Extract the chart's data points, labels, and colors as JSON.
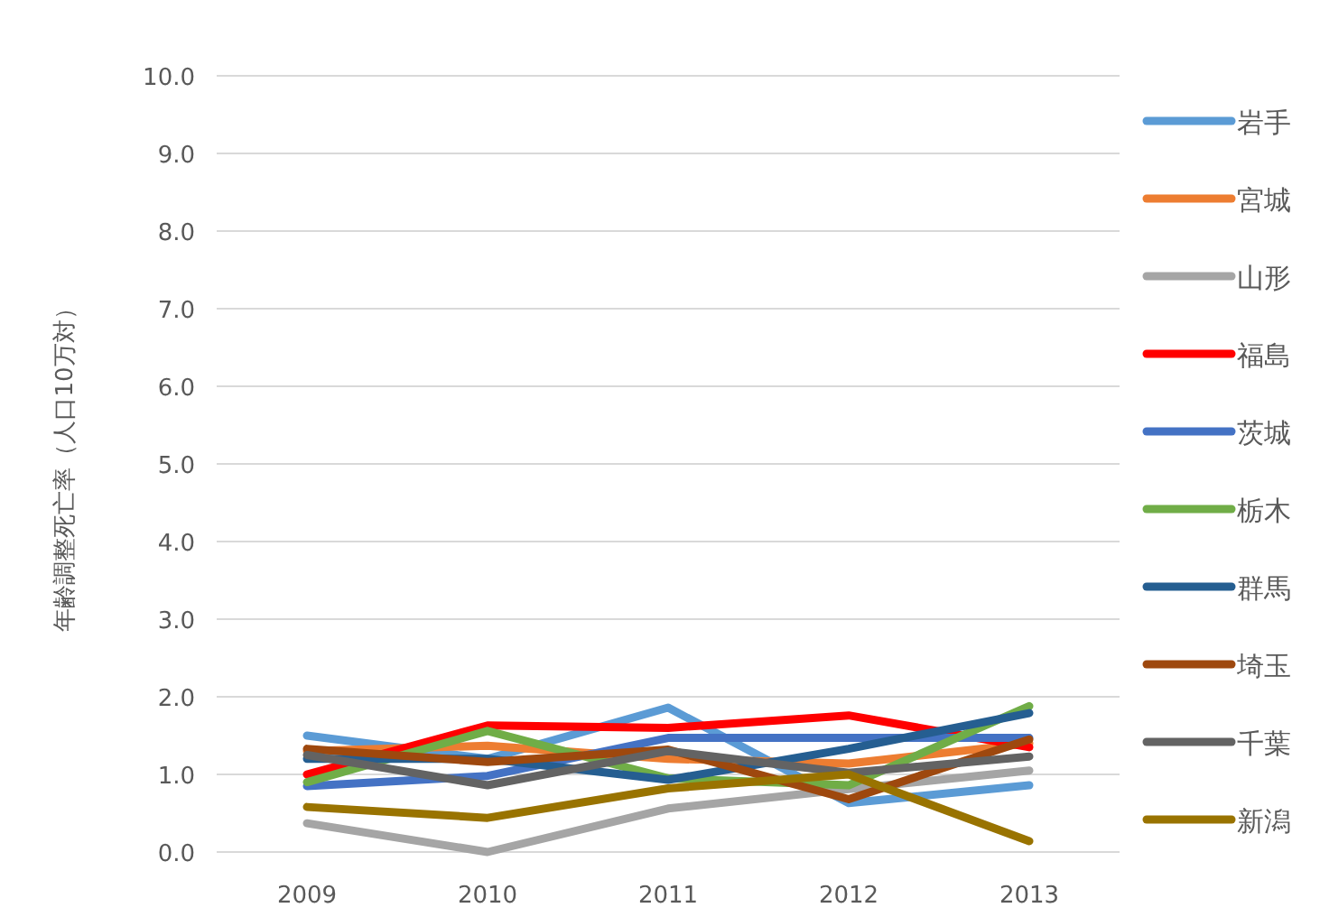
{
  "chart_data": {
    "type": "line",
    "ylabel": "年齢調整死亡率（人口10万対）",
    "categories": [
      "2009",
      "2010",
      "2011",
      "2012",
      "2013"
    ],
    "ylim": [
      0,
      10
    ],
    "yticks": [
      {
        "value": 0,
        "label": "0.0"
      },
      {
        "value": 1,
        "label": "1.0"
      },
      {
        "value": 2,
        "label": "2.0"
      },
      {
        "value": 3,
        "label": "3.0"
      },
      {
        "value": 4,
        "label": "4.0"
      },
      {
        "value": 5,
        "label": "5.0"
      },
      {
        "value": 6,
        "label": "6.0"
      },
      {
        "value": 7,
        "label": "7.0"
      },
      {
        "value": 8,
        "label": "8.0"
      },
      {
        "value": 9,
        "label": "9.0"
      },
      {
        "value": 10,
        "label": "10.0"
      }
    ],
    "grid": "y",
    "legend": "right",
    "marker": "none",
    "line_style": "solid",
    "series": [
      {
        "name": "岩手",
        "color": "#5b9bd5",
        "values": [
          1.5,
          1.2,
          1.86,
          0.63,
          0.86
        ]
      },
      {
        "name": "宮城",
        "color": "#ed7d31",
        "values": [
          1.3,
          1.37,
          1.2,
          1.14,
          1.4
        ]
      },
      {
        "name": "山形",
        "color": "#a5a5a5",
        "values": [
          0.37,
          0.0,
          0.56,
          0.81,
          1.05
        ]
      },
      {
        "name": "福島",
        "color": "#ff0000",
        "values": [
          1.0,
          1.63,
          1.6,
          1.76,
          1.35
        ]
      },
      {
        "name": "茨城",
        "color": "#4472c4",
        "values": [
          0.85,
          0.98,
          1.47,
          1.47,
          1.47
        ]
      },
      {
        "name": "栃木",
        "color": "#70ad47",
        "values": [
          0.9,
          1.56,
          0.95,
          0.86,
          1.88
        ]
      },
      {
        "name": "群馬",
        "color": "#255e91",
        "values": [
          1.2,
          1.2,
          0.93,
          1.33,
          1.79
        ]
      },
      {
        "name": "埼玉",
        "color": "#9e480e",
        "values": [
          1.33,
          1.16,
          1.32,
          0.68,
          1.45
        ]
      },
      {
        "name": "千葉",
        "color": "#636363",
        "values": [
          1.25,
          0.86,
          1.3,
          1.02,
          1.23
        ]
      },
      {
        "name": "新潟",
        "color": "#997300",
        "values": [
          0.58,
          0.44,
          0.82,
          1.0,
          0.14
        ]
      }
    ]
  }
}
